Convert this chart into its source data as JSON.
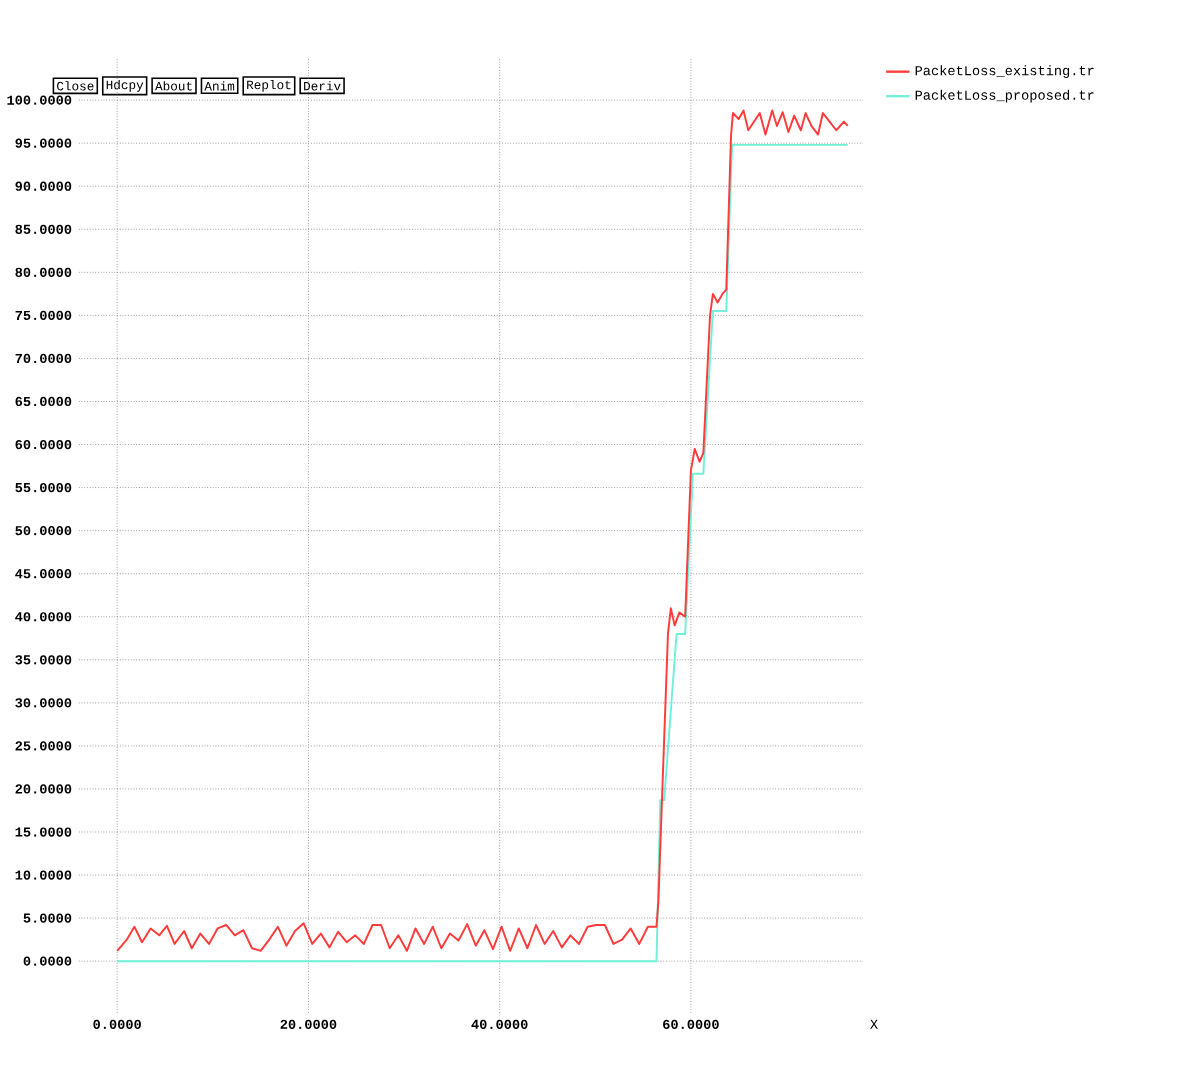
{
  "chart_data": {
    "type": "line",
    "xlabel": "X",
    "legend": "top right",
    "grid": true,
    "marker": "none",
    "line_style": "solid",
    "annotations": [
      "Close",
      "Hdcpy",
      "About",
      "Anim",
      "Replot",
      "Deriv"
    ],
    "xlim": [
      -4,
      78
    ],
    "ylim": [
      -6,
      105
    ],
    "xticks": [
      {
        "value": 0,
        "label": "0.0000"
      },
      {
        "value": 20,
        "label": "20.0000"
      },
      {
        "value": 40,
        "label": "40.0000"
      },
      {
        "value": 60,
        "label": "60.0000"
      }
    ],
    "yticks": [
      {
        "value": 0,
        "label": "0.0000"
      },
      {
        "value": 5,
        "label": "5.0000"
      },
      {
        "value": 10,
        "label": "10.0000"
      },
      {
        "value": 15,
        "label": "15.0000"
      },
      {
        "value": 20,
        "label": "20.0000"
      },
      {
        "value": 25,
        "label": "25.0000"
      },
      {
        "value": 30,
        "label": "30.0000"
      },
      {
        "value": 35,
        "label": "35.0000"
      },
      {
        "value": 40,
        "label": "40.0000"
      },
      {
        "value": 45,
        "label": "45.0000"
      },
      {
        "value": 50,
        "label": "50.0000"
      },
      {
        "value": 55,
        "label": "55.0000"
      },
      {
        "value": 60,
        "label": "60.0000"
      },
      {
        "value": 65,
        "label": "65.0000"
      },
      {
        "value": 70,
        "label": "70.0000"
      },
      {
        "value": 75,
        "label": "75.0000"
      },
      {
        "value": 80,
        "label": "80.0000"
      },
      {
        "value": 85,
        "label": "85.0000"
      },
      {
        "value": 90,
        "label": "90.0000"
      },
      {
        "value": 95,
        "label": "95.0000"
      },
      {
        "value": 100,
        "label": "100.0000"
      }
    ],
    "series": [
      {
        "name": "PacketLoss_proposed.tr",
        "color": "#6ff0d8",
        "x": [
          0,
          56.4,
          56.8,
          57.2,
          58.5,
          59.4,
          60.2,
          61.3,
          62.3,
          63.7,
          64.3,
          76.4
        ],
        "values": [
          0,
          0,
          18.7,
          18.7,
          38,
          38,
          56.6,
          56.6,
          75.5,
          75.5,
          94.8,
          94.8
        ]
      },
      {
        "name": "PacketLoss_existing.tr",
        "color": "#ff3b3b",
        "x": [
          0,
          1,
          1.8,
          2.6,
          3.5,
          4.4,
          5.2,
          6,
          7,
          7.8,
          8.7,
          9.6,
          10.5,
          11.4,
          12.3,
          13.2,
          14.1,
          15,
          15.9,
          16.8,
          17.7,
          18.6,
          19.5,
          20.4,
          21.3,
          22.2,
          23.1,
          24,
          24.9,
          25.8,
          26.7,
          27.6,
          28.5,
          29.4,
          30.3,
          31.2,
          32.1,
          33,
          33.9,
          34.8,
          35.7,
          36.6,
          37.5,
          38.4,
          39.3,
          40.2,
          41.1,
          42,
          42.9,
          43.8,
          44.7,
          45.6,
          46.5,
          47.4,
          48.3,
          49.2,
          50.1,
          51,
          51.9,
          52.8,
          53.7,
          54.6,
          55.5,
          56.4,
          56.6,
          57,
          57.6,
          57.9,
          58.3,
          58.8,
          59.4,
          60,
          60.4,
          60.9,
          61.3,
          62,
          62.3,
          62.8,
          63.3,
          63.7,
          64.2,
          64.4,
          65,
          65.5,
          66,
          66.6,
          67.2,
          67.8,
          68.5,
          69,
          69.6,
          70.2,
          70.8,
          71.5,
          72,
          72.6,
          73.3,
          73.8,
          74.5,
          75.2,
          76,
          76.4
        ],
        "values": [
          1.2,
          2.5,
          4,
          2.2,
          3.8,
          3,
          4.1,
          2,
          3.5,
          1.5,
          3.2,
          2,
          3.8,
          4.2,
          3,
          3.6,
          1.5,
          1.2,
          2.5,
          4,
          1.8,
          3.5,
          4.4,
          2,
          3.2,
          1.6,
          3.4,
          2.2,
          3,
          2,
          4.2,
          4.2,
          1.5,
          3,
          1.2,
          3.8,
          2,
          4,
          1.5,
          3.2,
          2.4,
          4.3,
          1.8,
          3.6,
          1.4,
          4,
          1.2,
          3.8,
          1.5,
          4.2,
          2,
          3.5,
          1.6,
          3,
          2,
          4,
          4.2,
          4.2,
          2,
          2.5,
          3.8,
          2,
          4,
          4,
          7,
          19.5,
          38,
          41,
          39,
          40.5,
          40,
          57,
          59.5,
          58,
          59,
          75,
          77.5,
          76.5,
          77.5,
          78,
          96,
          98.5,
          97.8,
          98.8,
          96.5,
          97.5,
          98.5,
          96,
          98.8,
          97,
          98.6,
          96.3,
          98.2,
          96.5,
          98.5,
          97,
          96,
          98.5,
          97.5,
          96.5,
          97.5,
          97
        ]
      }
    ]
  }
}
